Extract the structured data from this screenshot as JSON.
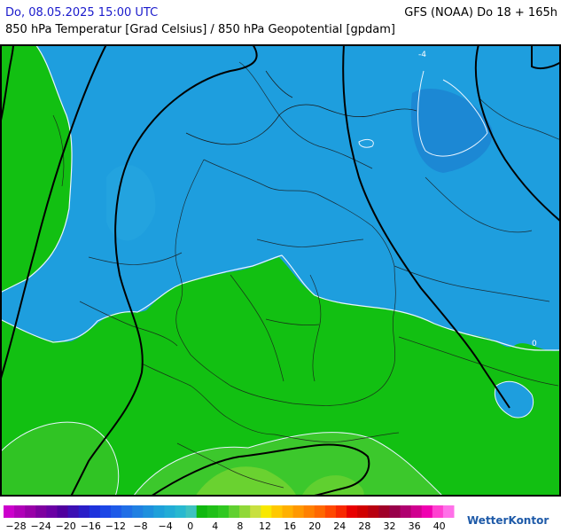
{
  "header": {
    "date": "Do, 08.05.2025 15:00 UTC",
    "model": "GFS (NOAA) Do 18 + 165h",
    "subtitle": "850 hPa Temperatur [Grad Celsius] / 850 hPa Geopotential [gpdam]"
  },
  "map": {
    "isotherm_labels": [
      "-4",
      "0"
    ]
  },
  "colorbar": {
    "tick_labels": [
      "−28",
      "−24",
      "−20",
      "−16",
      "−12",
      "−8",
      "−4",
      "0",
      "4",
      "8",
      "12",
      "16",
      "20",
      "24",
      "28",
      "32",
      "36",
      "40"
    ],
    "colors": [
      "#cc00cc",
      "#b000b8",
      "#9800a8",
      "#7e00a0",
      "#6a00a4",
      "#50009e",
      "#3c10b4",
      "#2a1ec8",
      "#1e32dc",
      "#1c46e6",
      "#1e5ae8",
      "#206ee6",
      "#2080e2",
      "#1e90de",
      "#1ea0da",
      "#22acd6",
      "#28b8d0",
      "#3ec2c0",
      "#10b810",
      "#20c018",
      "#30c820",
      "#60d030",
      "#90d838",
      "#c8e040",
      "#f8e800",
      "#ffc800",
      "#ffb000",
      "#ff9800",
      "#ff8000",
      "#ff6800",
      "#ff4800",
      "#f82800",
      "#e80000",
      "#d00000",
      "#b80010",
      "#a00028",
      "#98004a",
      "#b00070",
      "#d00090",
      "#f000b0",
      "#ff40d0",
      "#ff70e8"
    ]
  },
  "brand": {
    "logo_text": "WetterKontor"
  },
  "style": {
    "cold_blue": "#1e9ede",
    "colder_blue": "#1e88d6",
    "green": "#12c012",
    "light_green": "#3cc82c",
    "header_blue": "#1a1acc"
  }
}
